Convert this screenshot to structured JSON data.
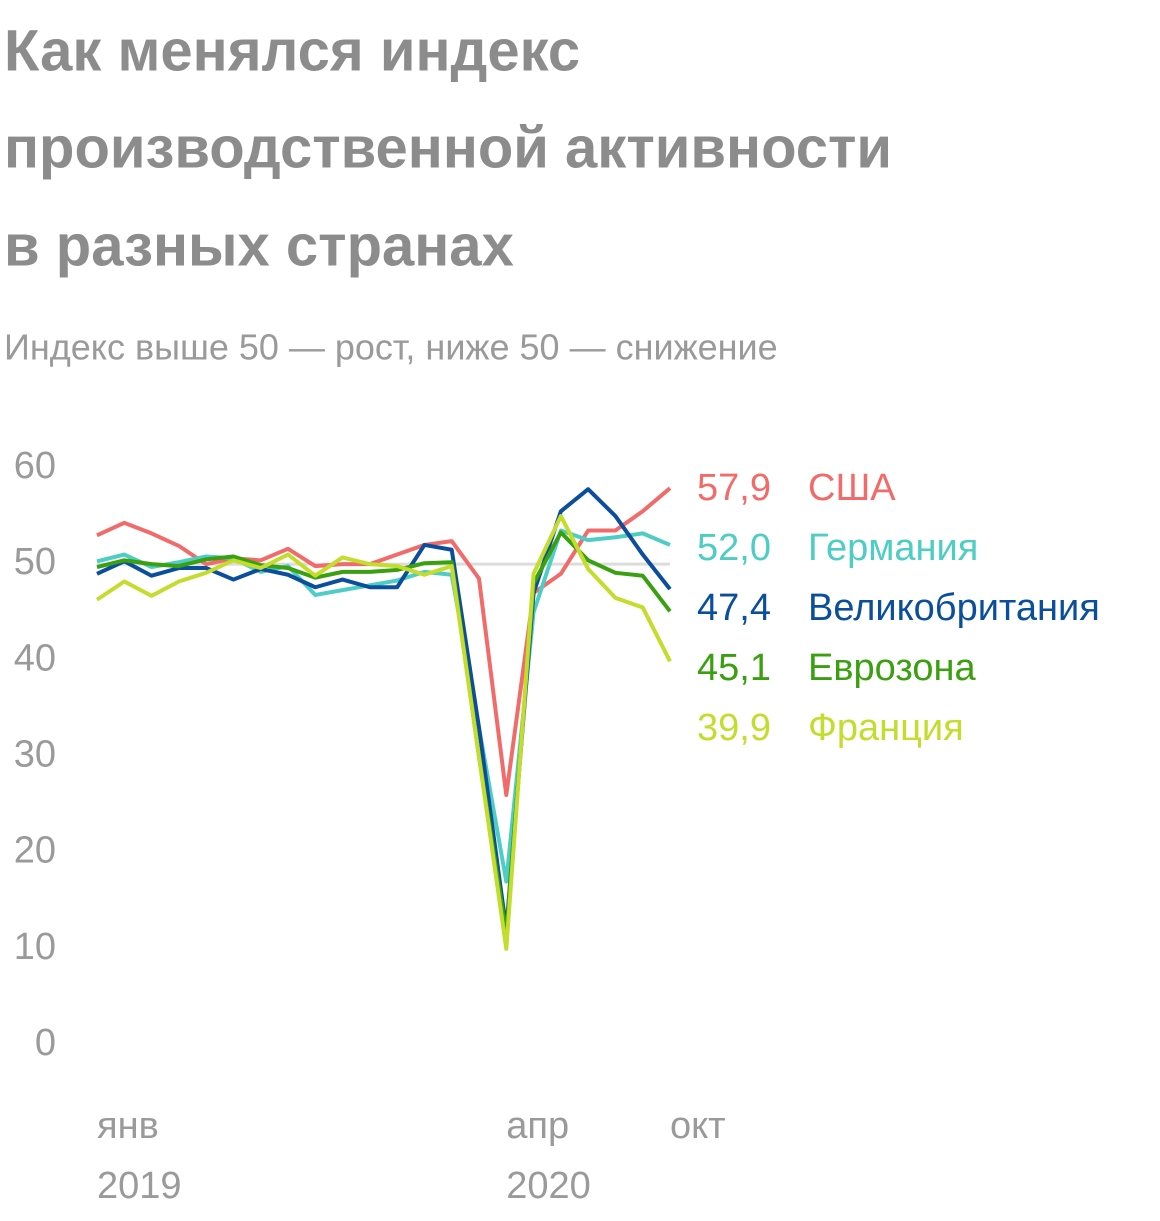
{
  "chart_data": {
    "type": "line",
    "title": [
      "Как менялся индекс",
      "производственной активности",
      "в разных странах"
    ],
    "subtitle": "Индекс выше 50 — рост, ниже 50 — снижение",
    "categories": [
      "янв",
      null,
      null,
      null,
      null,
      null,
      null,
      null,
      null,
      null,
      null,
      null,
      null,
      null,
      null,
      "апр",
      null,
      null,
      null,
      null,
      null,
      "окт"
    ],
    "years": [
      "2019",
      null,
      null,
      null,
      null,
      null,
      null,
      null,
      null,
      null,
      null,
      null,
      null,
      null,
      null,
      "2020",
      null,
      null,
      null,
      null,
      null,
      null
    ],
    "ylim": [
      0,
      60
    ],
    "yticks": [
      0,
      10,
      20,
      30,
      40,
      50,
      60
    ],
    "reference_line": 50,
    "series": [
      {
        "name": "США",
        "color": "#f26b6b",
        "values": [
          53,
          54.3,
          53.2,
          51.9,
          50,
          50.6,
          50.4,
          51.6,
          49.8,
          50,
          50,
          51,
          52,
          52.4,
          48.5,
          26,
          47,
          49,
          53.5,
          53.5,
          55.5,
          57.9
        ],
        "value_labels": [
          null,
          null,
          null,
          null,
          null,
          null,
          null,
          null,
          null,
          null,
          null,
          null,
          null,
          null,
          null,
          null,
          null,
          null,
          null,
          null,
          null,
          "57,9"
        ]
      },
      {
        "name": "Германия",
        "color": "#4ecdc4",
        "values": [
          50.3,
          51,
          49.7,
          50.2,
          50.8,
          50.6,
          49.2,
          49.8,
          46.8,
          47.3,
          47.8,
          48.3,
          49.2,
          48.9,
          33,
          17,
          45,
          53.5,
          52.5,
          52.8,
          53.2,
          52.0
        ],
        "value_labels": [
          null,
          null,
          null,
          null,
          null,
          null,
          null,
          null,
          null,
          null,
          null,
          null,
          null,
          null,
          null,
          null,
          null,
          null,
          null,
          null,
          null,
          "52,0"
        ]
      },
      {
        "name": "Великобритания",
        "color": "#0b4f9c",
        "values": [
          49,
          50.3,
          48.8,
          49.6,
          49.6,
          48.4,
          49.5,
          48.9,
          47.6,
          48.4,
          47.6,
          47.6,
          52,
          51.5,
          33,
          12,
          47,
          55.5,
          57.8,
          55,
          51,
          47.4
        ],
        "value_labels": [
          null,
          null,
          null,
          null,
          null,
          null,
          null,
          null,
          null,
          null,
          null,
          null,
          null,
          null,
          null,
          null,
          null,
          null,
          null,
          null,
          null,
          "47,4"
        ]
      },
      {
        "name": "Еврозона",
        "color": "#3aa010",
        "values": [
          49.7,
          50.4,
          50,
          49.8,
          50.5,
          50.8,
          49.9,
          49.6,
          48.6,
          49.2,
          49.2,
          49.4,
          50.1,
          50.2,
          30,
          11.5,
          48,
          53.3,
          50.4,
          49.1,
          48.8,
          45.1
        ],
        "value_labels": [
          null,
          null,
          null,
          null,
          null,
          null,
          null,
          null,
          null,
          null,
          null,
          null,
          null,
          null,
          null,
          null,
          null,
          null,
          null,
          null,
          null,
          "45,1"
        ]
      },
      {
        "name": "Франция",
        "color": "#c4dc2c",
        "values": [
          46.3,
          48.2,
          46.7,
          48.2,
          49.1,
          50.4,
          49.6,
          51,
          48.8,
          50.7,
          50,
          49.8,
          48.9,
          49.8,
          30,
          10,
          49,
          55,
          49.5,
          46.5,
          45.5,
          39.9
        ],
        "value_labels": [
          null,
          null,
          null,
          null,
          null,
          null,
          null,
          null,
          null,
          null,
          null,
          null,
          null,
          null,
          null,
          null,
          null,
          null,
          null,
          null,
          null,
          "39,9"
        ]
      }
    ]
  }
}
